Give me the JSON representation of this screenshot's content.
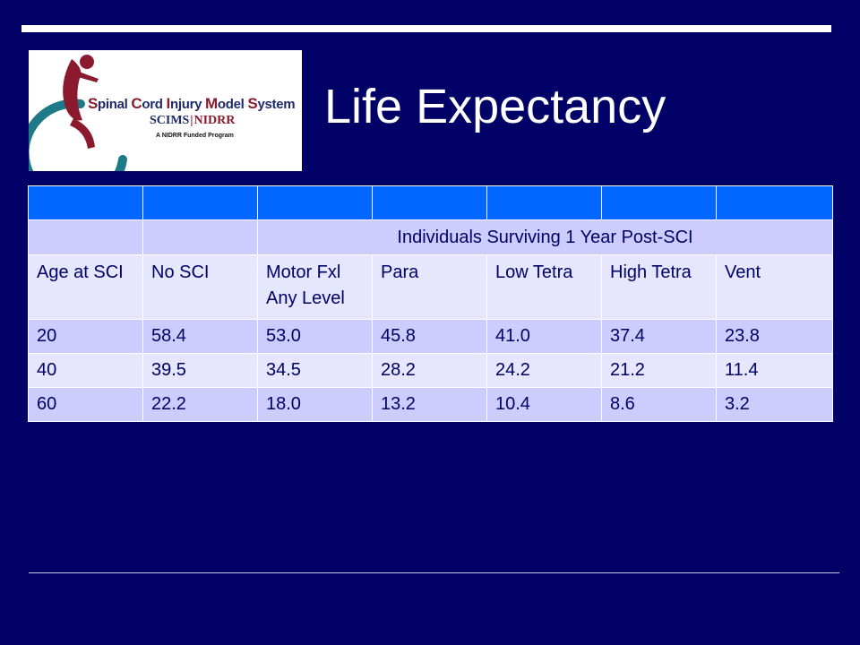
{
  "slide": {
    "title": "Life Expectancy"
  },
  "logo": {
    "program_name": "Spinal Cord Injury Model System",
    "name_parts": [
      {
        "cap": "S",
        "rest": "pinal "
      },
      {
        "cap": "C",
        "rest": "ord "
      },
      {
        "cap": "I",
        "rest": "njury "
      },
      {
        "cap": "M",
        "rest": "odel "
      },
      {
        "cap": "S",
        "rest": "ystem"
      }
    ],
    "org_left": "SCIMS",
    "org_sep": "|",
    "org_right": "NIDRR",
    "tagline": "A NIDRR Funded Program",
    "colors": {
      "navy": "#1f2a6b",
      "maroon": "#8b1a2e",
      "teal": "#1e7a86"
    }
  },
  "table": {
    "span_header": "Individuals Surviving 1 Year Post-SCI",
    "columns": [
      "Age at SCI",
      "No SCI",
      "Motor Fxl Any Level",
      "Para",
      "Low Tetra",
      "High Tetra",
      "Vent"
    ],
    "rows": [
      [
        "20",
        "58.4",
        "53.0",
        "45.8",
        "41.0",
        "37.4",
        "23.8"
      ],
      [
        "40",
        "39.5",
        "34.5",
        "28.2",
        "24.2",
        "21.2",
        "11.4"
      ],
      [
        "60",
        "22.2",
        "18.0",
        "13.2",
        "10.4",
        "8.6",
        "3.2"
      ]
    ],
    "colors": {
      "header": "#0066ff",
      "band": "#ccccff",
      "light": "#e6e6ff",
      "text": "#000066"
    }
  }
}
